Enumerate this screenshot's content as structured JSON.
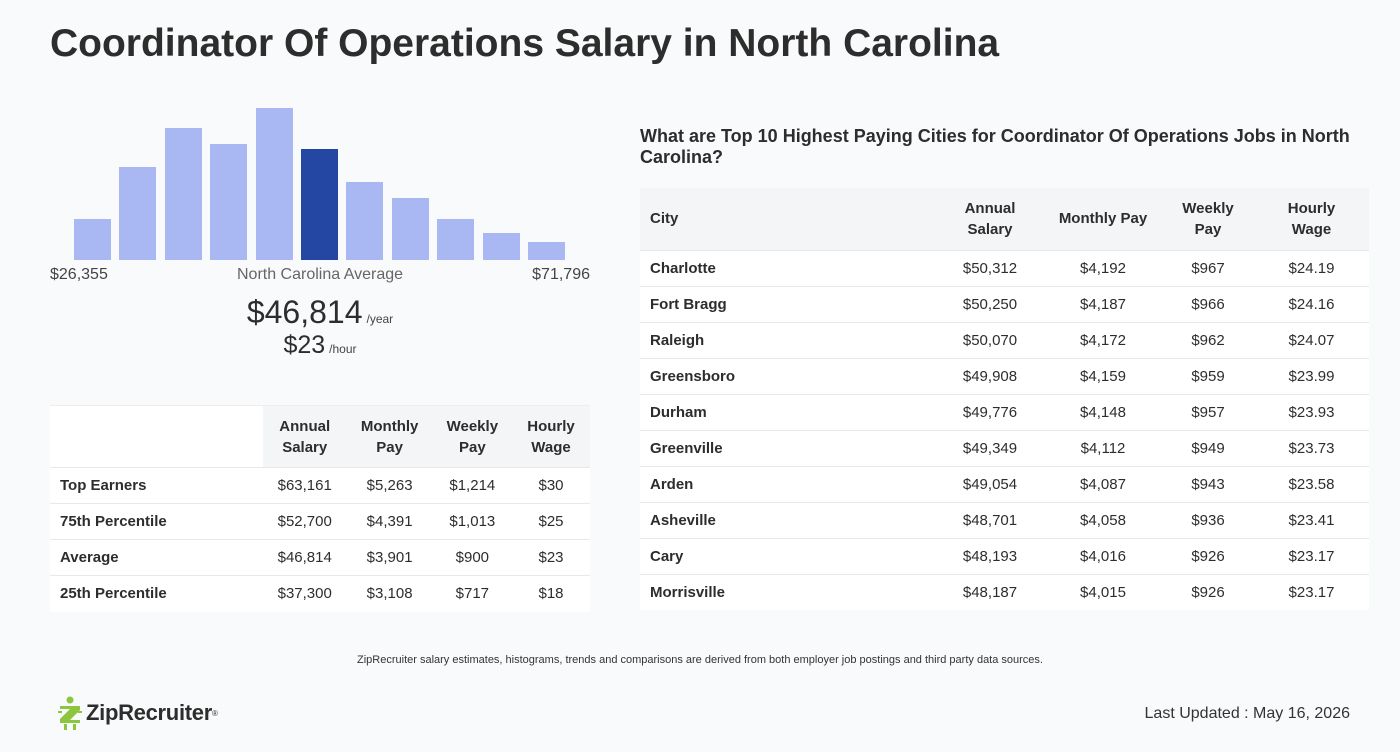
{
  "page": {
    "title": "Coordinator Of Operations Salary in North Carolina"
  },
  "histogram": {
    "bar_heights": [
      0.27,
      0.61,
      0.87,
      0.76,
      1.0,
      0.73,
      0.51,
      0.41,
      0.27,
      0.18,
      0.12
    ],
    "highlight_index": 5,
    "bar_color": "#a9b8f2",
    "highlight_color": "#2547a4",
    "min_label": "$26,355",
    "avg_label": "North Carolina Average",
    "max_label": "$71,796"
  },
  "average": {
    "yearly": "$46,814",
    "yearly_unit": "/year",
    "hourly": "$23",
    "hourly_unit": "/hour"
  },
  "percentile_table": {
    "headers": [
      "",
      "Annual Salary",
      "Monthly Pay",
      "Weekly Pay",
      "Hourly Wage"
    ],
    "rows": [
      [
        "Top Earners",
        "$63,161",
        "$5,263",
        "$1,214",
        "$30"
      ],
      [
        "75th Percentile",
        "$52,700",
        "$4,391",
        "$1,013",
        "$25"
      ],
      [
        "Average",
        "$46,814",
        "$3,901",
        "$900",
        "$23"
      ],
      [
        "25th Percentile",
        "$37,300",
        "$3,108",
        "$717",
        "$18"
      ]
    ]
  },
  "cities": {
    "title": "What are Top 10 Highest Paying Cities for Coordinator Of Operations Jobs in North Carolina?",
    "headers": [
      "City",
      "Annual Salary",
      "Monthly Pay",
      "Weekly Pay",
      "Hourly Wage"
    ],
    "rows": [
      [
        "Charlotte",
        "$50,312",
        "$4,192",
        "$967",
        "$24.19"
      ],
      [
        "Fort Bragg",
        "$50,250",
        "$4,187",
        "$966",
        "$24.16"
      ],
      [
        "Raleigh",
        "$50,070",
        "$4,172",
        "$962",
        "$24.07"
      ],
      [
        "Greensboro",
        "$49,908",
        "$4,159",
        "$959",
        "$23.99"
      ],
      [
        "Durham",
        "$49,776",
        "$4,148",
        "$957",
        "$23.93"
      ],
      [
        "Greenville",
        "$49,349",
        "$4,112",
        "$949",
        "$23.73"
      ],
      [
        "Arden",
        "$49,054",
        "$4,087",
        "$943",
        "$23.58"
      ],
      [
        "Asheville",
        "$48,701",
        "$4,058",
        "$936",
        "$23.41"
      ],
      [
        "Cary",
        "$48,193",
        "$4,016",
        "$926",
        "$23.17"
      ],
      [
        "Morrisville",
        "$48,187",
        "$4,015",
        "$926",
        "$23.17"
      ]
    ]
  },
  "footer": {
    "disclaimer": "ZipRecruiter salary estimates, histograms, trends and comparisons are derived from both employer job postings and third party data sources.",
    "logo_text": "ZipRecruiter",
    "logo_icon": "ziprecruiter-logo-icon",
    "logo_color": "#8cc63f",
    "last_updated": "Last Updated : May 16, 2026"
  }
}
